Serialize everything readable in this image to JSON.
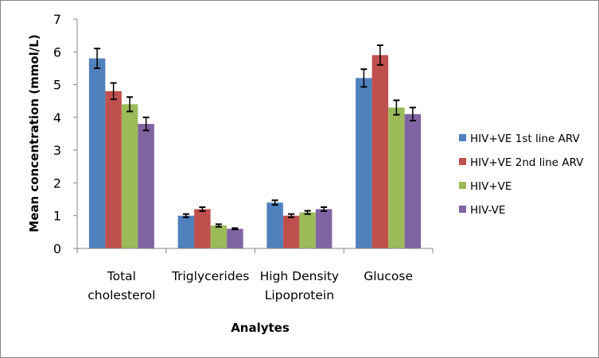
{
  "chart_data": {
    "type": "bar",
    "title": "",
    "xlabel": "Analytes",
    "ylabel": "Mean concentration (mmol/L)",
    "ylim": [
      0,
      7
    ],
    "yticks": [
      "0",
      "1",
      "2",
      "3",
      "4",
      "5",
      "6",
      "7"
    ],
    "grid": false,
    "legend_position": "right",
    "categories": [
      [
        "Total",
        "cholesterol"
      ],
      [
        "Triglycerides"
      ],
      [
        "High Density",
        "Lipoprotein"
      ],
      [
        "Glucose"
      ]
    ],
    "series": [
      {
        "name": "HIV+VE 1st line ARV",
        "color": "#4F81BD",
        "values": [
          5.8,
          1.0,
          1.4,
          5.2
        ],
        "errors": [
          0.3,
          0.05,
          0.07,
          0.27
        ]
      },
      {
        "name": "HIV+VE 2nd line ARV",
        "color": "#C0504D",
        "values": [
          4.8,
          1.2,
          1.0,
          5.9
        ],
        "errors": [
          0.25,
          0.06,
          0.05,
          0.3
        ]
      },
      {
        "name": "HIV+VE",
        "color": "#9BBB59",
        "values": [
          4.4,
          0.7,
          1.1,
          4.3
        ],
        "errors": [
          0.22,
          0.04,
          0.05,
          0.22
        ]
      },
      {
        "name": "HIV-VE",
        "color": "#8064A2",
        "values": [
          3.8,
          0.6,
          1.2,
          4.1
        ],
        "errors": [
          0.2,
          0.02,
          0.06,
          0.2
        ]
      }
    ]
  }
}
